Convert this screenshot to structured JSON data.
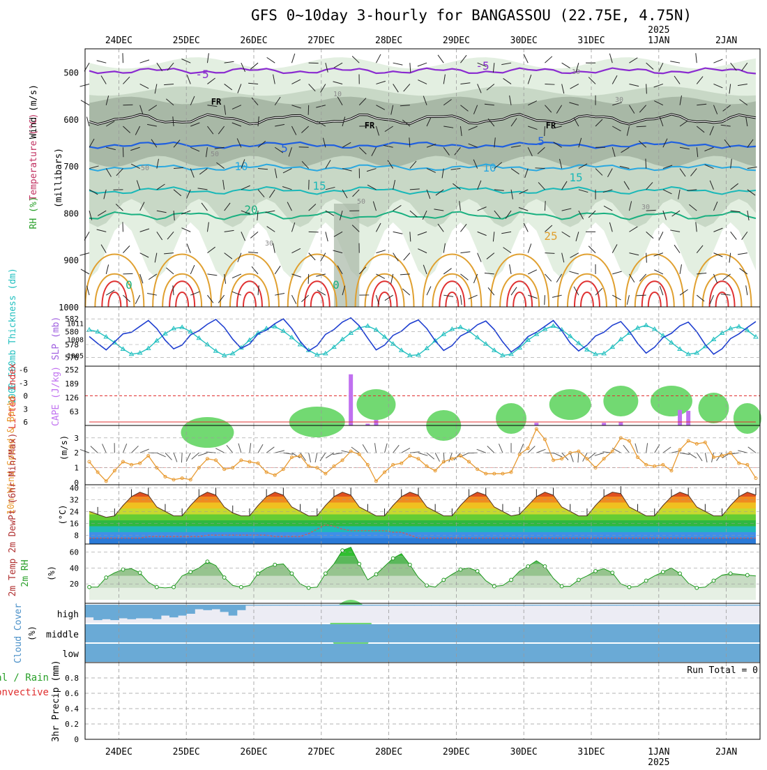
{
  "title": "GFS 0~10day 3-hourly for BANGASSOU (22.75E, 4.75N)",
  "date_labels": [
    "24DEC",
    "25DEC",
    "26DEC",
    "27DEC",
    "28DEC",
    "29DEC",
    "30DEC",
    "31DEC",
    "1JAN",
    "2JAN"
  ],
  "year_label": "2025",
  "colors": {
    "grid": "#9a9a9a",
    "rh_light": "#e3efe1",
    "rh_mid": "#c8d8c6",
    "rh_dark": "#a8b8a6",
    "green_bright": "#59d259",
    "temp_purple": "#8a2bd0",
    "temp_blue": "#1f5fe0",
    "temp_lightblue": "#2aa8e0",
    "temp_cyan": "#19b8b8",
    "temp_teal": "#1ab080",
    "temp_orange": "#e0a030",
    "temp_red": "#e03030",
    "slp_line": "#1f3fd0",
    "thickness_line": "#22c0c0",
    "cape_bar": "#c070f0",
    "lifted_line": "#e03030",
    "wind_line": "#e89a30",
    "barb": "#555555",
    "rh2m_line": "#1e9a1e",
    "cloud_fill": "#6aaad6",
    "cloud_empty": "#ececf4"
  },
  "panels": {
    "upper": {
      "ylabel_wind": "Wind (m/s)",
      "ylabel_temp": "Temperature (°C)",
      "ylabel_rh": "RH (%)",
      "ylabel_pressure": "(millibars)",
      "yticks": [
        500,
        600,
        700,
        800,
        900,
        1000
      ],
      "ylim": [
        450,
        1000
      ],
      "freezing_label": "FR",
      "isotherm_labels": [
        "-5",
        "-5",
        "5",
        "5",
        "10",
        "10",
        "15",
        "15",
        "20",
        "25",
        "0",
        "0"
      ],
      "rh_labels": [
        "10",
        "10",
        "30",
        "50",
        "50",
        "30",
        "50",
        "30"
      ]
    },
    "slp": {
      "ylabel_left": "1000-500mb Thickness (dm)",
      "ylabel_right": "SLP (mb)",
      "thick_ticks": [
        "582",
        "580",
        "578",
        "576"
      ],
      "slp_ticks": [
        "1011",
        "1008",
        "1005"
      ]
    },
    "cape": {
      "ylabel_left": "Lifted Index",
      "ylabel_right": "CAPE (J/kg)",
      "li_ticks": [
        "-6",
        "-3",
        "0",
        "3",
        "6"
      ],
      "cape_ticks": [
        "252",
        "189",
        "126",
        "63"
      ]
    },
    "wind": {
      "ylabel": "10m Wind Speed & Barbs",
      "yunit": "(m/s)",
      "yticks": [
        "0",
        "1",
        "2",
        "3"
      ]
    },
    "temp": {
      "ylabel": "2m Temp 2m DewPt (6hr Min/Max)",
      "yunit": "(°C)",
      "yticks": [
        "40",
        "32",
        "24",
        "16",
        "8"
      ]
    },
    "rh": {
      "ylabel": "2m RH",
      "yunit": "(%)",
      "yticks": [
        "60",
        "40",
        "20"
      ]
    },
    "cloud": {
      "ylabel": "Cloud Cover",
      "yunit": "(%)",
      "levels": [
        "high",
        "middle",
        "low"
      ]
    },
    "precip": {
      "ylabel_total": "Total / Rain",
      "ylabel_conv": "Convective",
      "ylabel": "3hr Precip (mm)",
      "yticks": [
        "0.8",
        "0.6",
        "0.4",
        "0.2",
        "0"
      ],
      "run_total": "Run Total = 0"
    }
  },
  "chart_data": {
    "type": "line",
    "x_unit": "3-hourly steps from 23DEC 12Z",
    "day_ticks_step": [
      4,
      12,
      20,
      28,
      36,
      44,
      52,
      60,
      68,
      76
    ],
    "series": [
      {
        "name": "SLP (mb)",
        "values": [
          1008.5,
          1007.2,
          1006.0,
          1007.5,
          1009.0,
          1009.3,
          1010.4,
          1011.5,
          1010.0,
          1007.8,
          1006.2,
          1006.9,
          1008.8,
          1009.6,
          1010.8,
          1011.7,
          1010.2,
          1008.0,
          1006.3,
          1007.1,
          1009.0,
          1009.7,
          1010.9,
          1011.8,
          1010.0,
          1007.6,
          1005.8,
          1006.8,
          1008.9,
          1009.8,
          1011.2,
          1012.0,
          1010.5,
          1008.2,
          1006.0,
          1006.9,
          1008.7,
          1009.5,
          1010.9,
          1011.6,
          1010.0,
          1007.7,
          1005.9,
          1006.8,
          1008.6,
          1009.4,
          1010.7,
          1011.4,
          1009.8,
          1007.5,
          1005.6,
          1006.7,
          1008.5,
          1009.3,
          1010.4,
          1011.5,
          1009.6,
          1007.3,
          1005.8,
          1006.9,
          1008.6,
          1009.3,
          1010.6,
          1011.3,
          1009.5,
          1007.2,
          1005.4,
          1006.5,
          1008.3,
          1009.1,
          1010.5,
          1011.2,
          1009.4,
          1007.0,
          1005.2,
          1006.2,
          1008.1,
          1009.0,
          1010.2,
          1011.3
        ]
      },
      {
        "name": "1000-500mb Thickness (dm)",
        "values": [
          580.3,
          580.0,
          579.2,
          578.3,
          577.3,
          576.5,
          576.7,
          577.4,
          578.6,
          579.7,
          580.5,
          580.7,
          580.0,
          579.0,
          578.0,
          577.0,
          576.3,
          576.6,
          577.5,
          578.7,
          579.8,
          580.5,
          580.8,
          580.1,
          579.1,
          578.0,
          577.1,
          576.4,
          576.6,
          577.6,
          578.8,
          579.8,
          580.6,
          580.9,
          580.3,
          579.2,
          578.1,
          577.1,
          576.3,
          576.4,
          577.4,
          578.6,
          579.6,
          580.4,
          580.7,
          580.1,
          579.1,
          578.1,
          577.1,
          576.3,
          576.5,
          577.5,
          578.7,
          579.6,
          580.4,
          580.9,
          580.3,
          579.3,
          578.2,
          577.2,
          576.5,
          576.6,
          577.6,
          578.8,
          579.8,
          580.6,
          581.0,
          580.4,
          579.4,
          578.3,
          577.3,
          576.5,
          576.7,
          577.7,
          578.8,
          579.8,
          580.5,
          580.8,
          580.2,
          579.2
        ]
      },
      {
        "name": "Lifted Index",
        "values": [
          6,
          6,
          6,
          6,
          6,
          6,
          6,
          6,
          6,
          6,
          6,
          6,
          6,
          6,
          6,
          6,
          6,
          6,
          6,
          6,
          6,
          6,
          6,
          6,
          6,
          6,
          6,
          6,
          6,
          6,
          6,
          6,
          6,
          6,
          6,
          6,
          6,
          6,
          6,
          6,
          6,
          6,
          6,
          6,
          6,
          6,
          6,
          6,
          6,
          6,
          6,
          6,
          6,
          6,
          6,
          6,
          6,
          6,
          6,
          6,
          6,
          6,
          6,
          6,
          6,
          6,
          6,
          6,
          6,
          6,
          6,
          6,
          6,
          6,
          6,
          6,
          6,
          6,
          6,
          6
        ]
      },
      {
        "name": "CAPE (J/kg)",
        "values": [
          0,
          0,
          0,
          0,
          0,
          0,
          0,
          0,
          0,
          0,
          0,
          0,
          0,
          0,
          0,
          0,
          0,
          0,
          0,
          0,
          0,
          0,
          0,
          0,
          0,
          0,
          0,
          0,
          0,
          0,
          0,
          231,
          0,
          8,
          25,
          0,
          0,
          0,
          0,
          0,
          0,
          0,
          0,
          0,
          0,
          0,
          0,
          0,
          0,
          0,
          0,
          0,
          0,
          12,
          0,
          0,
          0,
          0,
          0,
          0,
          0,
          12,
          0,
          14,
          0,
          0,
          0,
          0,
          0,
          0,
          70,
          66,
          0,
          0,
          0,
          0,
          0,
          0,
          0,
          0
        ]
      },
      {
        "name": "10m Wind Speed (m/s)",
        "values": [
          1.4,
          0.7,
          0.1,
          0.8,
          1.4,
          1.2,
          1.3,
          1.8,
          1.0,
          0.4,
          0.2,
          0.3,
          0.2,
          1.0,
          1.6,
          1.5,
          0.9,
          1.0,
          1.5,
          1.4,
          1.3,
          0.7,
          0.5,
          0.9,
          1.7,
          1.8,
          1.1,
          1.0,
          0.6,
          1.1,
          1.5,
          2.1,
          1.9,
          1.2,
          0.1,
          0.7,
          1.2,
          1.3,
          1.8,
          1.6,
          1.1,
          0.8,
          1.4,
          1.6,
          1.8,
          1.4,
          0.9,
          0.6,
          0.6,
          0.6,
          0.7,
          1.9,
          2.3,
          3.6,
          2.9,
          1.5,
          1.6,
          2.0,
          2.1,
          1.6,
          1.0,
          1.6,
          2.1,
          3.0,
          2.8,
          1.7,
          1.2,
          1.1,
          1.2,
          0.8,
          2.2,
          2.8,
          2.6,
          2.7,
          1.7,
          1.8,
          2.0,
          1.3,
          1.2,
          0.3
        ]
      },
      {
        "name": "2m Temp (°C)",
        "values": [
          24,
          22,
          20,
          21,
          28,
          34,
          37,
          35,
          27,
          24,
          21,
          21,
          28,
          34,
          37,
          35,
          27,
          23,
          21,
          21,
          28,
          34,
          37,
          35,
          27,
          24,
          21,
          21,
          28,
          34,
          37,
          35,
          27,
          24,
          21,
          21,
          28,
          34,
          37,
          35,
          27,
          24,
          21,
          21,
          28,
          34,
          37,
          35,
          27,
          24,
          21,
          22,
          28,
          34,
          37,
          35,
          27,
          24,
          21,
          21,
          28,
          34,
          37,
          36,
          27,
          24,
          21,
          21,
          28,
          34,
          37,
          35,
          27,
          24,
          21,
          21,
          28,
          34,
          37,
          35
        ]
      },
      {
        "name": "2m DewPt (°C)",
        "values": [
          6,
          6,
          6,
          6,
          6,
          6,
          6,
          7,
          7,
          7,
          7,
          7,
          7,
          7,
          8,
          8,
          8,
          8,
          8,
          8,
          8,
          8,
          7,
          7,
          7,
          7,
          9,
          12,
          15,
          14,
          12,
          11,
          11,
          11,
          11,
          11,
          10,
          10,
          8,
          6,
          6,
          6,
          6,
          6,
          6,
          6,
          6,
          6,
          6,
          6,
          6,
          6,
          6,
          6,
          6,
          6,
          6,
          6,
          6,
          6,
          6,
          6,
          6,
          6,
          6,
          6,
          6,
          6,
          6,
          6,
          6,
          6,
          6,
          6,
          6,
          6,
          6,
          6,
          6,
          6
        ]
      },
      {
        "name": "2m RH (%)",
        "values": [
          16,
          16,
          28,
          34,
          38,
          39,
          34,
          22,
          16,
          15,
          16,
          30,
          35,
          40,
          48,
          43,
          28,
          18,
          16,
          18,
          33,
          40,
          44,
          45,
          33,
          20,
          15,
          16,
          33,
          45,
          62,
          66,
          45,
          25,
          32,
          42,
          52,
          58,
          44,
          28,
          18,
          16,
          25,
          32,
          38,
          40,
          36,
          24,
          17,
          18,
          25,
          36,
          42,
          49,
          42,
          27,
          17,
          17,
          25,
          30,
          36,
          39,
          34,
          20,
          16,
          17,
          24,
          30,
          35,
          40,
          33,
          21,
          15,
          16,
          24,
          31,
          33,
          32,
          31,
          30
        ]
      },
      {
        "name": "3hr Precip (mm)",
        "values": [
          0,
          0,
          0,
          0,
          0,
          0,
          0,
          0,
          0,
          0,
          0,
          0,
          0,
          0,
          0,
          0,
          0,
          0,
          0,
          0,
          0,
          0,
          0,
          0,
          0,
          0,
          0,
          0,
          0,
          0,
          0,
          0,
          0,
          0,
          0,
          0,
          0,
          0,
          0,
          0,
          0,
          0,
          0,
          0,
          0,
          0,
          0,
          0,
          0,
          0,
          0,
          0,
          0,
          0,
          0,
          0,
          0,
          0,
          0,
          0,
          0,
          0,
          0,
          0,
          0,
          0,
          0,
          0,
          0,
          0,
          0,
          0,
          0,
          0,
          0,
          0,
          0,
          0,
          0,
          0
        ]
      }
    ],
    "cloud_high": [
      70,
      85,
      80,
      85,
      75,
      80,
      75,
      75,
      80,
      60,
      70,
      60,
      50,
      25,
      30,
      25,
      40,
      60,
      30,
      5,
      5,
      5,
      5,
      5,
      5,
      5,
      5,
      5,
      5,
      5,
      5,
      5,
      5,
      5,
      5,
      5,
      5,
      5,
      5,
      5,
      5,
      5,
      5,
      5,
      5,
      5,
      5,
      5,
      5,
      5,
      5,
      5,
      5,
      5,
      5,
      5,
      5,
      5,
      5,
      5,
      5,
      5,
      5,
      5,
      5,
      5,
      5,
      5,
      5,
      5,
      5,
      5,
      5,
      5,
      5,
      5,
      5,
      5,
      5,
      5
    ],
    "cloud_middle": [
      100,
      100,
      100,
      100,
      100,
      100,
      100,
      100,
      100,
      100,
      100,
      100,
      100,
      100,
      100,
      100,
      100,
      100,
      100,
      100,
      100,
      100,
      100,
      100,
      100,
      100,
      100,
      100,
      100,
      100,
      100,
      100,
      100,
      100,
      100,
      100,
      100,
      100,
      100,
      100,
      100,
      100,
      100,
      100,
      100,
      100,
      100,
      100,
      100,
      100,
      100,
      100,
      100,
      100,
      100,
      100,
      100,
      100,
      100,
      100,
      100,
      100,
      100,
      100,
      100,
      100,
      100,
      100,
      100,
      100,
      100,
      100,
      100,
      100,
      100,
      100,
      100,
      100,
      100,
      100
    ],
    "cloud_low": [
      100,
      100,
      100,
      100,
      100,
      100,
      100,
      100,
      100,
      100,
      100,
      100,
      100,
      100,
      100,
      100,
      100,
      100,
      100,
      100,
      100,
      100,
      100,
      100,
      100,
      100,
      100,
      100,
      100,
      100,
      100,
      100,
      100,
      100,
      100,
      100,
      100,
      100,
      100,
      100,
      100,
      100,
      100,
      100,
      100,
      100,
      100,
      100,
      100,
      100,
      100,
      100,
      100,
      100,
      100,
      100,
      100,
      100,
      100,
      100,
      100,
      100,
      100,
      100,
      100,
      100,
      100,
      100,
      100,
      100,
      100,
      100,
      100,
      100,
      100,
      100,
      100,
      100,
      100,
      100
    ]
  }
}
